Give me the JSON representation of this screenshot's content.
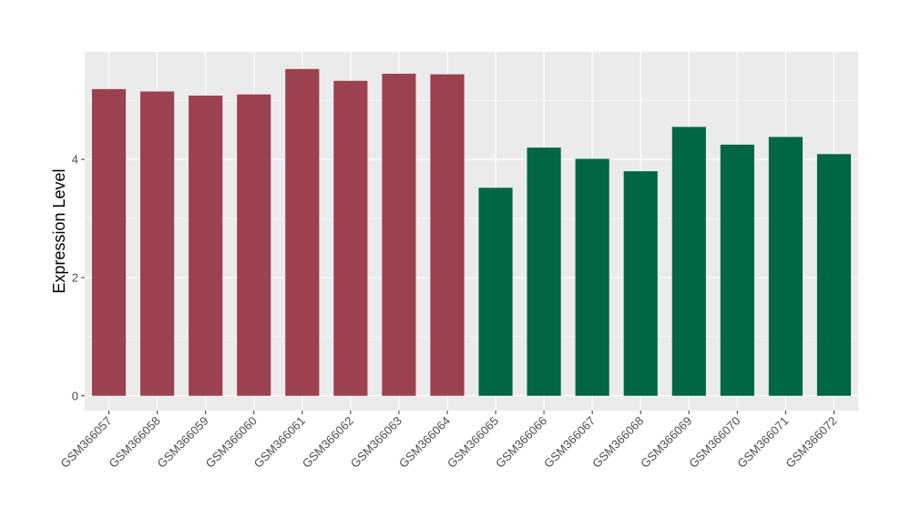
{
  "chart_data": {
    "type": "bar",
    "title": "",
    "xlabel": "",
    "ylabel": "Expression Level",
    "ylim": [
      -0.25,
      5.82
    ],
    "yticks": [
      0,
      2,
      4
    ],
    "categories": [
      "GSM366057",
      "GSM366058",
      "GSM366059",
      "GSM366060",
      "GSM366061",
      "GSM366062",
      "GSM366063",
      "GSM366064",
      "GSM366065",
      "GSM366066",
      "GSM366067",
      "GSM366068",
      "GSM366069",
      "GSM366070",
      "GSM366071",
      "GSM366072"
    ],
    "values": [
      5.19,
      5.15,
      5.08,
      5.1,
      5.53,
      5.33,
      5.45,
      5.44,
      3.52,
      4.2,
      4.01,
      3.8,
      4.55,
      4.25,
      4.38,
      4.09
    ],
    "bar_colors": [
      "#9b4150",
      "#9b4150",
      "#9b4150",
      "#9b4150",
      "#9b4150",
      "#9b4150",
      "#9b4150",
      "#9b4150",
      "#006644",
      "#006644",
      "#006644",
      "#006644",
      "#006644",
      "#006644",
      "#006644",
      "#006644"
    ],
    "panel_background": "#ebebeb",
    "grid_color": "#ffffff",
    "grid": true,
    "legend": "none"
  }
}
